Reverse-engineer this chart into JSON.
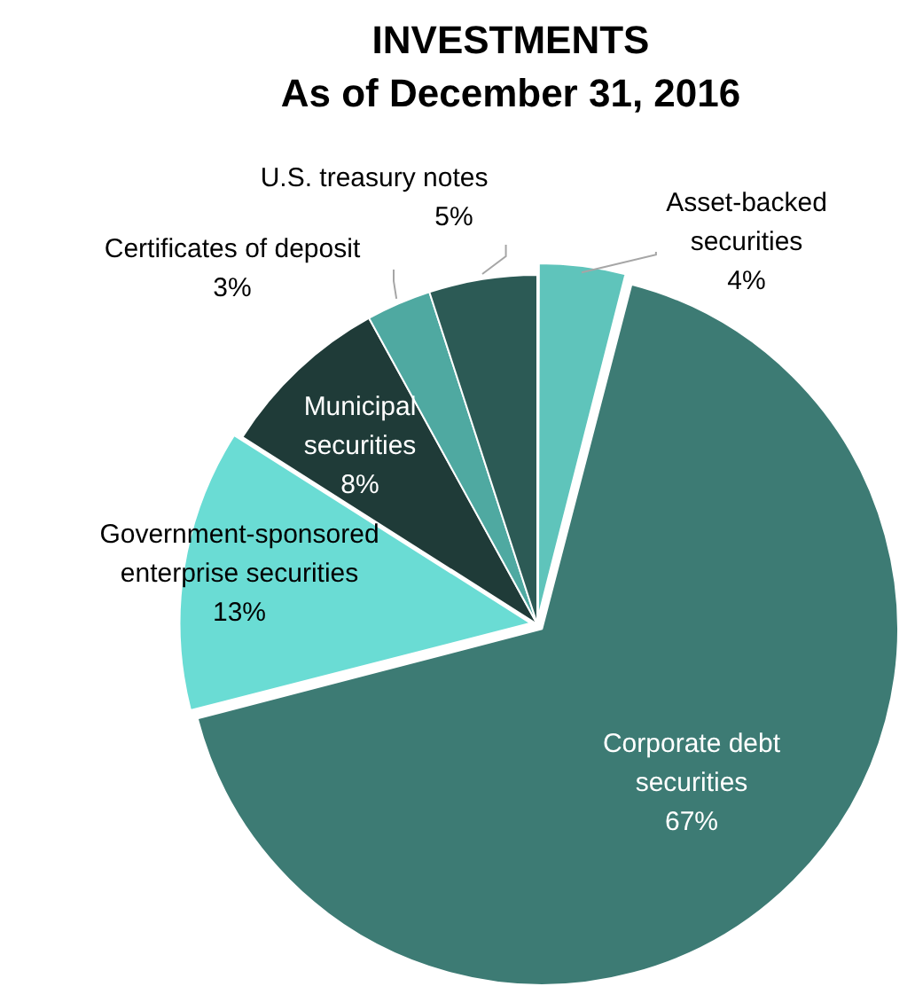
{
  "chart_data": {
    "type": "pie",
    "title": "INVESTMENTS",
    "subtitle": "As of December 31, 2016",
    "categories": [
      "Asset-backed securities",
      "Corporate debt securities",
      "Government-sponsored enterprise securities",
      "Municipal securities",
      "Certificates of deposit",
      "U.S. treasury notes"
    ],
    "values": [
      4,
      67,
      13,
      8,
      3,
      5
    ],
    "value_labels": [
      "4%",
      "67%",
      "13%",
      "8%",
      "3%",
      "5%"
    ],
    "colors": [
      "#5fc4bb",
      "#3d7b74",
      "#6adcd4",
      "#1f3b38",
      "#4fa9a1",
      "#2c5a55"
    ]
  }
}
